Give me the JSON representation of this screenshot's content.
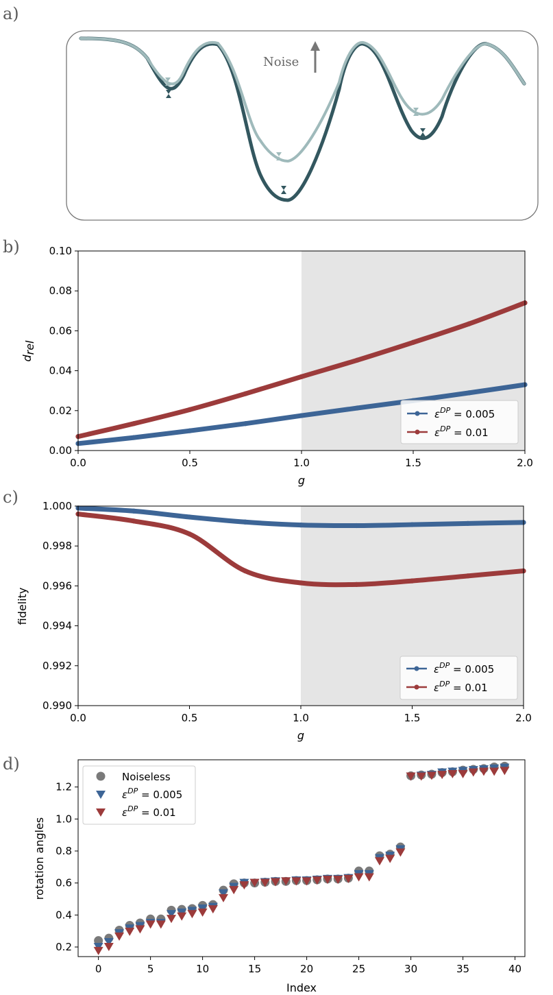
{
  "colors": {
    "blue": "#3d6596",
    "red": "#9c3b3b",
    "gray": "#7a7a7a",
    "shade": "#e5e5e5",
    "dark_teal": "#33575f",
    "light_teal": "#9fbabb",
    "noise_arrow": "#777777"
  },
  "panels": {
    "a": {
      "letter": "a)",
      "noise_label": "Noise"
    },
    "b": {
      "letter": "b)"
    },
    "c": {
      "letter": "c)"
    },
    "d": {
      "letter": "d)"
    }
  },
  "chart_data": [
    {
      "id": "b",
      "type": "line",
      "title": "",
      "xlabel": "g",
      "ylabel_main": "d",
      "ylabel_sub": "rel",
      "xlim": [
        0,
        2
      ],
      "ylim": [
        0,
        0.1
      ],
      "xticks": [
        0,
        0.5,
        1,
        1.5,
        2
      ],
      "xtick_labels": [
        "0.0",
        "0.5",
        "1.0",
        "1.5",
        "2.0"
      ],
      "yticks": [
        0,
        0.02,
        0.04,
        0.06,
        0.08,
        0.1
      ],
      "ytick_labels": [
        "0.00",
        "0.02",
        "0.04",
        "0.06",
        "0.08",
        "0.10"
      ],
      "shaded_region": [
        1,
        2
      ],
      "legend_position": "lower-right",
      "x": [
        0,
        0.25,
        0.5,
        0.75,
        1.0,
        1.25,
        1.5,
        1.75,
        2.0
      ],
      "series": [
        {
          "name_main": "ε",
          "name_sup": "DP",
          "name_tail": " = 0.005",
          "color_key": "blue",
          "values": [
            0.0035,
            0.0065,
            0.0099,
            0.0135,
            0.0175,
            0.0213,
            0.025,
            0.0289,
            0.033
          ]
        },
        {
          "name_main": "ε",
          "name_sup": "DP",
          "name_tail": " = 0.01",
          "color_key": "red",
          "values": [
            0.007,
            0.0135,
            0.0205,
            0.0285,
            0.037,
            0.0453,
            0.0542,
            0.0635,
            0.074
          ]
        }
      ]
    },
    {
      "id": "c",
      "type": "line",
      "title": "",
      "xlabel": "g",
      "ylabel": "fidelity",
      "xlim": [
        0,
        2
      ],
      "ylim": [
        0.99,
        1.0
      ],
      "xticks": [
        0,
        0.5,
        1,
        1.5,
        2
      ],
      "xtick_labels": [
        "0.0",
        "0.5",
        "1.0",
        "1.5",
        "2.0"
      ],
      "yticks": [
        0.99,
        0.992,
        0.994,
        0.996,
        0.998,
        1.0
      ],
      "ytick_labels": [
        "0.990",
        "0.992",
        "0.994",
        "0.996",
        "0.998",
        "1.000"
      ],
      "shaded_region": [
        1,
        2
      ],
      "legend_position": "lower-right",
      "x": [
        0,
        0.25,
        0.5,
        0.75,
        1.0,
        1.25,
        1.5,
        1.75,
        2.0
      ],
      "series": [
        {
          "name_main": "ε",
          "name_sup": "DP",
          "name_tail": " = 0.005",
          "color_key": "blue",
          "values": [
            0.9999,
            0.99975,
            0.99945,
            0.9992,
            0.99905,
            0.99902,
            0.99907,
            0.99913,
            0.99918
          ]
        },
        {
          "name_main": "ε",
          "name_sup": "DP",
          "name_tail": " = 0.01",
          "color_key": "red",
          "values": [
            0.9996,
            0.99925,
            0.9986,
            0.99675,
            0.99615,
            0.99607,
            0.99625,
            0.9965,
            0.99675
          ]
        }
      ]
    },
    {
      "id": "d",
      "type": "scatter",
      "title": "",
      "xlabel": "Index",
      "ylabel": "rotation angles",
      "xlim": [
        -1.95,
        40.95
      ],
      "ylim": [
        0.14,
        1.37
      ],
      "xticks": [
        0,
        5,
        10,
        15,
        20,
        25,
        30,
        35,
        40
      ],
      "xtick_labels": [
        "0",
        "5",
        "10",
        "15",
        "20",
        "25",
        "30",
        "35",
        "40"
      ],
      "yticks": [
        0.2,
        0.4,
        0.6,
        0.8,
        1.0,
        1.2
      ],
      "ytick_labels": [
        "0.2",
        "0.4",
        "0.6",
        "0.8",
        "1.0",
        "1.2"
      ],
      "legend_position": "top-left",
      "series": [
        {
          "name_main": "Noiseless",
          "name_sup": "",
          "name_tail": "",
          "marker": "circle",
          "color_key": "gray",
          "values": [
            0.24,
            0.255,
            0.305,
            0.335,
            0.35,
            0.375,
            0.375,
            0.43,
            0.435,
            0.44,
            0.46,
            0.465,
            0.555,
            0.595,
            0.6,
            0.6,
            0.605,
            0.61,
            0.61,
            0.615,
            0.615,
            0.62,
            0.625,
            0.625,
            0.63,
            0.675,
            0.675,
            0.77,
            0.78,
            0.825,
            1.27,
            1.275,
            1.28,
            1.29,
            1.295,
            1.305,
            1.31,
            1.315,
            1.325,
            1.33
          ]
        },
        {
          "name_main": "ε",
          "name_sup": "DP",
          "name_tail": " = 0.005",
          "marker": "triangle-down",
          "color_key": "blue",
          "values": [
            0.2,
            0.23,
            0.285,
            0.315,
            0.33,
            0.35,
            0.35,
            0.405,
            0.415,
            0.425,
            0.44,
            0.45,
            0.535,
            0.575,
            0.6,
            0.6,
            0.605,
            0.61,
            0.61,
            0.615,
            0.615,
            0.62,
            0.625,
            0.625,
            0.63,
            0.655,
            0.655,
            0.755,
            0.77,
            0.81,
            1.265,
            1.27,
            1.275,
            1.29,
            1.295,
            1.3,
            1.305,
            1.31,
            1.315,
            1.32
          ]
        },
        {
          "name_main": "ε",
          "name_sup": "DP",
          "name_tail": " = 0.01",
          "marker": "triangle-down",
          "color_key": "red",
          "values": [
            0.175,
            0.2,
            0.265,
            0.295,
            0.31,
            0.34,
            0.34,
            0.375,
            0.39,
            0.405,
            0.415,
            0.435,
            0.505,
            0.555,
            0.585,
            0.6,
            0.6,
            0.605,
            0.61,
            0.61,
            0.61,
            0.615,
            0.62,
            0.62,
            0.625,
            0.635,
            0.635,
            0.735,
            0.75,
            0.79,
            1.265,
            1.265,
            1.27,
            1.275,
            1.28,
            1.28,
            1.29,
            1.295,
            1.295,
            1.3
          ]
        }
      ]
    }
  ]
}
